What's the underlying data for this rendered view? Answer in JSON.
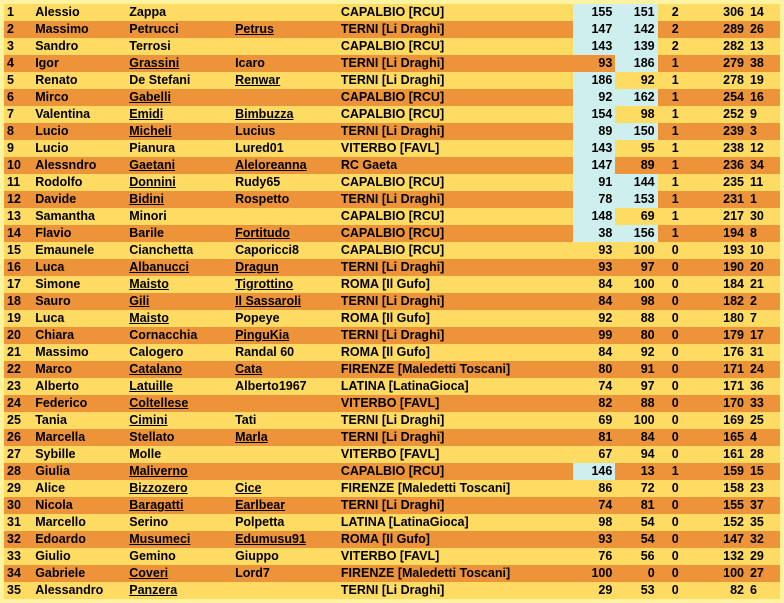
{
  "colors": {
    "row_even": "#fedb63",
    "row_odd": "#ed933a",
    "bg": "#fef3a0",
    "highlight": "#cfeeee"
  },
  "rows": [
    {
      "rank": "1",
      "fname": "Alessio",
      "lname": "Zappa",
      "lname_u": 0,
      "nick": "",
      "nick_u": 0,
      "club": "CAPALBIO [RCU]",
      "s1": "155",
      "s1h": 1,
      "s2": "151",
      "s2h": 1,
      "n": "2",
      "tot": "306",
      "ex": "14"
    },
    {
      "rank": "2",
      "fname": "Massimo",
      "lname": "Petrucci",
      "lname_u": 0,
      "nick": "Petrus",
      "nick_u": 1,
      "club": "TERNI [Li Draghi]",
      "s1": "147",
      "s1h": 1,
      "s2": "142",
      "s2h": 1,
      "n": "2",
      "tot": "289",
      "ex": "26"
    },
    {
      "rank": "3",
      "fname": "Sandro",
      "lname": "Terrosi",
      "lname_u": 0,
      "nick": "",
      "nick_u": 0,
      "club": "CAPALBIO [RCU]",
      "s1": "143",
      "s1h": 1,
      "s2": "139",
      "s2h": 1,
      "n": "2",
      "tot": "282",
      "ex": "13"
    },
    {
      "rank": "4",
      "fname": "Igor",
      "lname": "Grassini",
      "lname_u": 1,
      "nick": "Icaro",
      "nick_u": 0,
      "club": "TERNI [Li Draghi]",
      "s1": "93",
      "s1h": 0,
      "s2": "186",
      "s2h": 1,
      "n": "1",
      "tot": "279",
      "ex": "38"
    },
    {
      "rank": "5",
      "fname": "Renato",
      "lname": "De Stefani",
      "lname_u": 0,
      "nick": "Renwar",
      "nick_u": 1,
      "club": "TERNI [Li Draghi]",
      "s1": "186",
      "s1h": 1,
      "s2": "92",
      "s2h": 0,
      "n": "1",
      "tot": "278",
      "ex": "19"
    },
    {
      "rank": "6",
      "fname": "Mirco",
      "lname": "Gabelli",
      "lname_u": 1,
      "nick": "",
      "nick_u": 0,
      "club": "CAPALBIO [RCU]",
      "s1": "92",
      "s1h": 1,
      "s2": "162",
      "s2h": 1,
      "n": "1",
      "tot": "254",
      "ex": "16"
    },
    {
      "rank": "7",
      "fname": "Valentina",
      "lname": "Emidi",
      "lname_u": 1,
      "nick": "Bimbuzza",
      "nick_u": 1,
      "club": "CAPALBIO [RCU]",
      "s1": "154",
      "s1h": 1,
      "s2": "98",
      "s2h": 0,
      "n": "1",
      "tot": "252",
      "ex": "9"
    },
    {
      "rank": "8",
      "fname": "Lucio",
      "lname": "Micheli",
      "lname_u": 1,
      "nick": "Lucius",
      "nick_u": 0,
      "club": "TERNI [Li Draghi]",
      "s1": "89",
      "s1h": 1,
      "s2": "150",
      "s2h": 1,
      "n": "1",
      "tot": "239",
      "ex": "3"
    },
    {
      "rank": "9",
      "fname": "Lucio",
      "lname": "Pianura",
      "lname_u": 0,
      "nick": "Lured01",
      "nick_u": 0,
      "club": "VITERBO [FAVL]",
      "s1": "143",
      "s1h": 1,
      "s2": "95",
      "s2h": 0,
      "n": "1",
      "tot": "238",
      "ex": "12"
    },
    {
      "rank": "10",
      "fname": "Alessndro",
      "lname": "Gaetani",
      "lname_u": 1,
      "nick": "Aleloreanna",
      "nick_u": 1,
      "club": "RC Gaeta",
      "s1": "147",
      "s1h": 1,
      "s2": "89",
      "s2h": 0,
      "n": "1",
      "tot": "236",
      "ex": "34"
    },
    {
      "rank": "11",
      "fname": "Rodolfo",
      "lname": "Donnini",
      "lname_u": 1,
      "nick": "Rudy65",
      "nick_u": 0,
      "club": "CAPALBIO [RCU]",
      "s1": "91",
      "s1h": 1,
      "s2": "144",
      "s2h": 1,
      "n": "1",
      "tot": "235",
      "ex": "11"
    },
    {
      "rank": "12",
      "fname": "Davide",
      "lname": "Bidini",
      "lname_u": 1,
      "nick": "Rospetto",
      "nick_u": 0,
      "club": "TERNI [Li Draghi]",
      "s1": "78",
      "s1h": 1,
      "s2": "153",
      "s2h": 1,
      "n": "1",
      "tot": "231",
      "ex": "1"
    },
    {
      "rank": "13",
      "fname": "Samantha",
      "lname": "Minori",
      "lname_u": 0,
      "nick": "",
      "nick_u": 0,
      "club": "CAPALBIO [RCU]",
      "s1": "148",
      "s1h": 1,
      "s2": "69",
      "s2h": 0,
      "n": "1",
      "tot": "217",
      "ex": "30"
    },
    {
      "rank": "14",
      "fname": "Flavio",
      "lname": "Barile",
      "lname_u": 0,
      "nick": "Fortitudo",
      "nick_u": 1,
      "club": "CAPALBIO [RCU]",
      "s1": "38",
      "s1h": 1,
      "s2": "156",
      "s2h": 1,
      "n": "1",
      "tot": "194",
      "ex": "8"
    },
    {
      "rank": "15",
      "fname": "Emaunele",
      "lname": "Cianchetta",
      "lname_u": 0,
      "nick": "Caporicci8",
      "nick_u": 0,
      "club": "CAPALBIO [RCU]",
      "s1": "93",
      "s1h": 0,
      "s2": "100",
      "s2h": 0,
      "n": "0",
      "tot": "193",
      "ex": "10"
    },
    {
      "rank": "16",
      "fname": "Luca",
      "lname": "Albanucci",
      "lname_u": 1,
      "nick": "Dragun",
      "nick_u": 1,
      "club": "TERNI [Li Draghi]",
      "s1": "93",
      "s1h": 0,
      "s2": "97",
      "s2h": 0,
      "n": "0",
      "tot": "190",
      "ex": "20"
    },
    {
      "rank": "17",
      "fname": "Simone",
      "lname": "Maisto",
      "lname_u": 1,
      "nick": "Tigrottino",
      "nick_u": 1,
      "club": "ROMA [Il Gufo]",
      "s1": "84",
      "s1h": 0,
      "s2": "100",
      "s2h": 0,
      "n": "0",
      "tot": "184",
      "ex": "21"
    },
    {
      "rank": "18",
      "fname": "Sauro",
      "lname": "Gili",
      "lname_u": 1,
      "nick": "Il Sassaroli",
      "nick_u": 1,
      "club": "TERNI [Li Draghi]",
      "s1": "84",
      "s1h": 0,
      "s2": "98",
      "s2h": 0,
      "n": "0",
      "tot": "182",
      "ex": "2"
    },
    {
      "rank": "19",
      "fname": "Luca",
      "lname": "Maisto",
      "lname_u": 1,
      "nick": "Popeye",
      "nick_u": 0,
      "club": "ROMA [Il Gufo]",
      "s1": "92",
      "s1h": 0,
      "s2": "88",
      "s2h": 0,
      "n": "0",
      "tot": "180",
      "ex": "7"
    },
    {
      "rank": "20",
      "fname": "Chiara",
      "lname": "Cornacchia",
      "lname_u": 0,
      "nick": "PinguKia",
      "nick_u": 1,
      "club": "TERNI [Li Draghi]",
      "s1": "99",
      "s1h": 0,
      "s2": "80",
      "s2h": 0,
      "n": "0",
      "tot": "179",
      "ex": "17"
    },
    {
      "rank": "21",
      "fname": "Massimo",
      "lname": "Calogero",
      "lname_u": 0,
      "nick": "Randal 60",
      "nick_u": 0,
      "club": "ROMA [Il Gufo]",
      "s1": "84",
      "s1h": 0,
      "s2": "92",
      "s2h": 0,
      "n": "0",
      "tot": "176",
      "ex": "31"
    },
    {
      "rank": "22",
      "fname": "Marco",
      "lname": "Catalano",
      "lname_u": 1,
      "nick": "Cata",
      "nick_u": 1,
      "club": "FIRENZE [Maledetti Toscani]",
      "s1": "80",
      "s1h": 0,
      "s2": "91",
      "s2h": 0,
      "n": "0",
      "tot": "171",
      "ex": "24"
    },
    {
      "rank": "23",
      "fname": "Alberto",
      "lname": "Latuille",
      "lname_u": 1,
      "nick": "Alberto1967",
      "nick_u": 0,
      "club": "LATINA [LatinaGioca]",
      "s1": "74",
      "s1h": 0,
      "s2": "97",
      "s2h": 0,
      "n": "0",
      "tot": "171",
      "ex": "36"
    },
    {
      "rank": "24",
      "fname": "Federico",
      "lname": "Coltellese",
      "lname_u": 1,
      "nick": "",
      "nick_u": 0,
      "club": "VITERBO [FAVL]",
      "s1": "82",
      "s1h": 0,
      "s2": "88",
      "s2h": 0,
      "n": "0",
      "tot": "170",
      "ex": "33"
    },
    {
      "rank": "25",
      "fname": "Tania",
      "lname": "Cimini",
      "lname_u": 1,
      "nick": "Tati",
      "nick_u": 0,
      "club": "TERNI [Li Draghi]",
      "s1": "69",
      "s1h": 0,
      "s2": "100",
      "s2h": 0,
      "n": "0",
      "tot": "169",
      "ex": "25"
    },
    {
      "rank": "26",
      "fname": "Marcella",
      "lname": "Stellato",
      "lname_u": 0,
      "nick": "Marla",
      "nick_u": 1,
      "club": "TERNI [Li Draghi]",
      "s1": "81",
      "s1h": 0,
      "s2": "84",
      "s2h": 0,
      "n": "0",
      "tot": "165",
      "ex": "4"
    },
    {
      "rank": "27",
      "fname": "Sybille",
      "lname": "Molle",
      "lname_u": 0,
      "nick": "",
      "nick_u": 0,
      "club": "VITERBO [FAVL]",
      "s1": "67",
      "s1h": 0,
      "s2": "94",
      "s2h": 0,
      "n": "0",
      "tot": "161",
      "ex": "28"
    },
    {
      "rank": "28",
      "fname": "Giulia",
      "lname": "Maliverno",
      "lname_u": 1,
      "nick": "",
      "nick_u": 0,
      "club": "CAPALBIO [RCU]",
      "s1": "146",
      "s1h": 1,
      "s2": "13",
      "s2h": 0,
      "n": "1",
      "tot": "159",
      "ex": "15"
    },
    {
      "rank": "29",
      "fname": "Alice",
      "lname": "Bizzozero",
      "lname_u": 1,
      "nick": "Cice",
      "nick_u": 1,
      "club": "FIRENZE [Maledetti Toscani]",
      "s1": "86",
      "s1h": 0,
      "s2": "72",
      "s2h": 0,
      "n": "0",
      "tot": "158",
      "ex": "23"
    },
    {
      "rank": "30",
      "fname": "Nicola",
      "lname": "Baragatti",
      "lname_u": 1,
      "nick": "Earlbear",
      "nick_u": 1,
      "club": "TERNI [Li Draghi]",
      "s1": "74",
      "s1h": 0,
      "s2": "81",
      "s2h": 0,
      "n": "0",
      "tot": "155",
      "ex": "37"
    },
    {
      "rank": "31",
      "fname": "Marcello",
      "lname": "Serino",
      "lname_u": 0,
      "nick": "Polpetta",
      "nick_u": 0,
      "club": "LATINA [LatinaGioca]",
      "s1": "98",
      "s1h": 0,
      "s2": "54",
      "s2h": 0,
      "n": "0",
      "tot": "152",
      "ex": "35"
    },
    {
      "rank": "32",
      "fname": "Edoardo",
      "lname": "Musumeci",
      "lname_u": 1,
      "nick": "Edumusu91",
      "nick_u": 1,
      "club": "ROMA [Il Gufo]",
      "s1": "93",
      "s1h": 0,
      "s2": "54",
      "s2h": 0,
      "n": "0",
      "tot": "147",
      "ex": "32"
    },
    {
      "rank": "33",
      "fname": "Giulio",
      "lname": "Gemino",
      "lname_u": 0,
      "nick": "Giuppo",
      "nick_u": 0,
      "club": "VITERBO [FAVL]",
      "s1": "76",
      "s1h": 0,
      "s2": "56",
      "s2h": 0,
      "n": "0",
      "tot": "132",
      "ex": "29"
    },
    {
      "rank": "34",
      "fname": "Gabriele",
      "lname": "Coveri",
      "lname_u": 1,
      "nick": "Lord7",
      "nick_u": 0,
      "club": "FIRENZE [Maledetti Toscani]",
      "s1": "100",
      "s1h": 0,
      "s2": "0",
      "s2h": 0,
      "n": "0",
      "tot": "100",
      "ex": "27"
    },
    {
      "rank": "35",
      "fname": "Alessandro",
      "lname": "Panzera",
      "lname_u": 1,
      "nick": "",
      "nick_u": 0,
      "club": "TERNI [Li Draghi]",
      "s1": "29",
      "s1h": 0,
      "s2": "53",
      "s2h": 0,
      "n": "0",
      "tot": "82",
      "ex": "6"
    }
  ]
}
